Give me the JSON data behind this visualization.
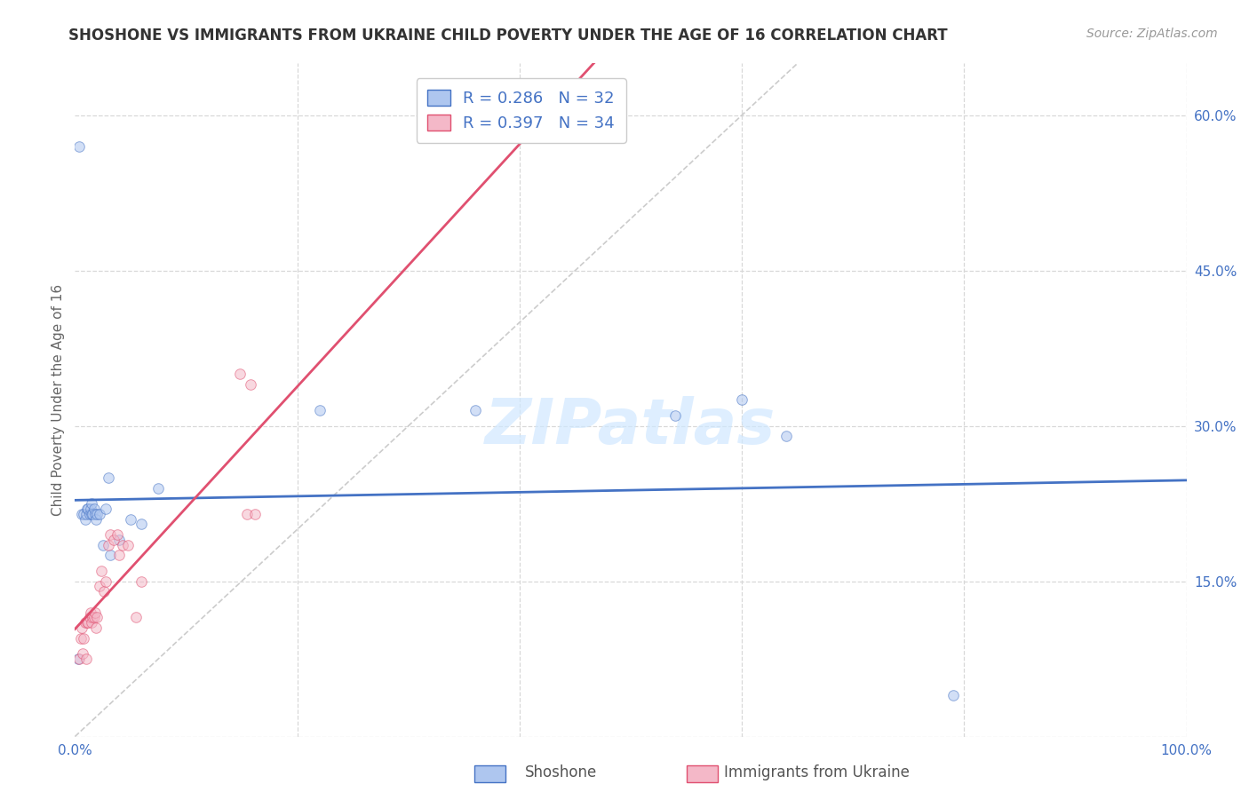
{
  "title": "SHOSHONE VS IMMIGRANTS FROM UKRAINE CHILD POVERTY UNDER THE AGE OF 16 CORRELATION CHART",
  "source": "Source: ZipAtlas.com",
  "ylabel": "Child Poverty Under the Age of 16",
  "xlim": [
    0,
    1.0
  ],
  "ylim": [
    0,
    0.65
  ],
  "xticks": [
    0.0,
    0.2,
    0.4,
    0.6,
    0.8,
    1.0
  ],
  "xticklabels": [
    "0.0%",
    "",
    "",
    "",
    "",
    "100.0%"
  ],
  "yticks": [
    0.0,
    0.15,
    0.3,
    0.45,
    0.6
  ],
  "yticklabels": [
    "",
    "15.0%",
    "30.0%",
    "45.0%",
    "60.0%"
  ],
  "shoshone_color": "#aec6ef",
  "ukraine_color": "#f4b8c8",
  "shoshone_line_color": "#4472c4",
  "ukraine_line_color": "#e05070",
  "diagonal_color": "#cccccc",
  "background_color": "#ffffff",
  "grid_color": "#d8d8d8",
  "shoshone_x": [
    0.003,
    0.006,
    0.008,
    0.009,
    0.01,
    0.011,
    0.012,
    0.013,
    0.014,
    0.015,
    0.015,
    0.016,
    0.017,
    0.018,
    0.019,
    0.02,
    0.022,
    0.025,
    0.028,
    0.03,
    0.032,
    0.04,
    0.05,
    0.06,
    0.075,
    0.22,
    0.36,
    0.54,
    0.6,
    0.64,
    0.79,
    0.004
  ],
  "shoshone_y": [
    0.075,
    0.215,
    0.215,
    0.21,
    0.215,
    0.22,
    0.22,
    0.215,
    0.22,
    0.215,
    0.225,
    0.215,
    0.22,
    0.215,
    0.21,
    0.215,
    0.215,
    0.185,
    0.22,
    0.25,
    0.175,
    0.19,
    0.21,
    0.205,
    0.24,
    0.315,
    0.315,
    0.31,
    0.325,
    0.29,
    0.04,
    0.57
  ],
  "ukraine_x": [
    0.004,
    0.005,
    0.006,
    0.007,
    0.008,
    0.009,
    0.01,
    0.011,
    0.012,
    0.013,
    0.014,
    0.015,
    0.016,
    0.017,
    0.018,
    0.019,
    0.02,
    0.022,
    0.024,
    0.026,
    0.028,
    0.03,
    0.032,
    0.035,
    0.038,
    0.04,
    0.043,
    0.048,
    0.055,
    0.06,
    0.148,
    0.155,
    0.162,
    0.158
  ],
  "ukraine_y": [
    0.075,
    0.095,
    0.105,
    0.08,
    0.095,
    0.11,
    0.075,
    0.11,
    0.11,
    0.115,
    0.12,
    0.11,
    0.115,
    0.115,
    0.12,
    0.105,
    0.115,
    0.145,
    0.16,
    0.14,
    0.15,
    0.185,
    0.195,
    0.19,
    0.195,
    0.175,
    0.185,
    0.185,
    0.115,
    0.15,
    0.35,
    0.215,
    0.215,
    0.34
  ],
  "title_fontsize": 12,
  "axis_label_fontsize": 11,
  "tick_fontsize": 11,
  "legend_fontsize": 13,
  "source_fontsize": 10,
  "marker_size": 70,
  "marker_alpha": 0.55,
  "line_width": 2.0,
  "watermark_text": "ZIPatlas",
  "watermark_color": "#d0e8ff",
  "shoshone_label": "Shoshone",
  "ukraine_label": "Immigrants from Ukraine"
}
